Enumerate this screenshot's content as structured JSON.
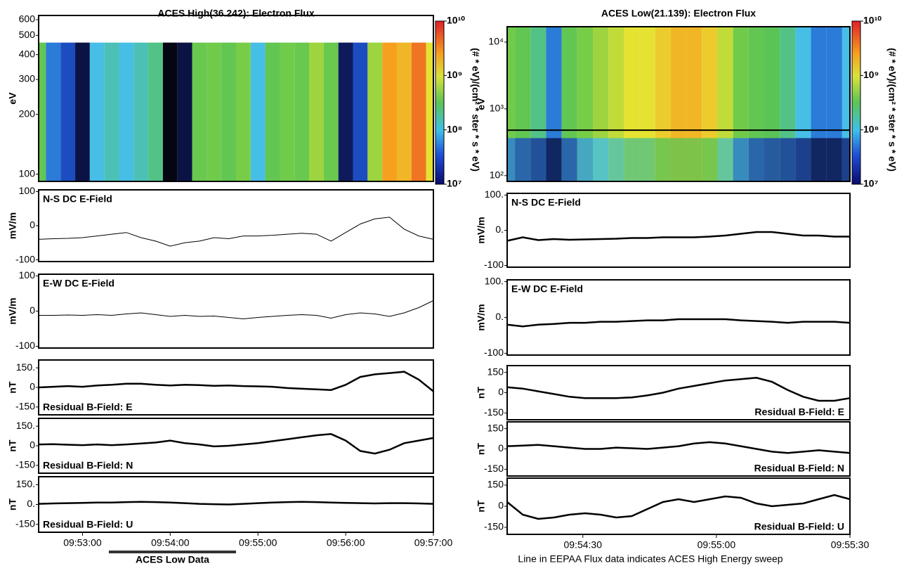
{
  "chart_data": [
    {
      "type": "heatmap",
      "title": "ACES High(36.242): Electron Flux",
      "ylabel": "eV",
      "log_y": true,
      "ylim": [
        92,
        630
      ],
      "yticks": [
        100,
        200,
        300,
        400,
        500,
        600
      ],
      "max_energy": 460,
      "xlim": [
        33150,
        33420
      ],
      "x": [
        33150,
        33160,
        33170,
        33180,
        33190,
        33200,
        33210,
        33220,
        33230,
        33240,
        33250,
        33260,
        33270,
        33280,
        33290,
        33300,
        33310,
        33320,
        33330,
        33340,
        33350,
        33360,
        33370,
        33380,
        33390,
        33400,
        33410,
        33420
      ],
      "values": [
        8.6,
        8.0,
        7.8,
        7.2,
        8.2,
        8.3,
        8.2,
        8.3,
        8.4,
        7.0,
        7.2,
        8.7,
        8.8,
        8.6,
        8.9,
        8.2,
        8.6,
        8.8,
        8.7,
        9.0,
        8.7,
        7.3,
        7.8,
        9.0,
        9.5,
        9.4,
        9.6,
        9.2
      ],
      "colorbar": {
        "label": "(# * eV)/(cm² * ster * s * eV)",
        "lim": [
          10000000,
          10000000000
        ],
        "ticks": [
          {
            "value": 10000000,
            "label": "10⁷"
          },
          {
            "value": 100000000,
            "label": "10⁸"
          },
          {
            "value": 1000000000,
            "label": "10⁹"
          },
          {
            "value": 10000000000,
            "label": "10¹⁰"
          }
        ]
      }
    },
    {
      "type": "line",
      "label": "N-S DC E-Field",
      "label_corner": "top left",
      "ylabel": "mV/m",
      "color": "#000000",
      "xlim": [
        33150,
        33420
      ],
      "ylim": [
        -105,
        105
      ],
      "yticks": [
        -100,
        0,
        100
      ],
      "x": [
        33150,
        33160,
        33170,
        33180,
        33190,
        33200,
        33210,
        33220,
        33230,
        33240,
        33250,
        33260,
        33270,
        33280,
        33290,
        33300,
        33310,
        33320,
        33330,
        33340,
        33350,
        33360,
        33370,
        33380,
        33390,
        33400,
        33410,
        33420
      ],
      "values": [
        -40,
        -38,
        -37,
        -35,
        -30,
        -25,
        -20,
        -35,
        -45,
        -60,
        -50,
        -45,
        -35,
        -38,
        -30,
        -30,
        -28,
        -25,
        -22,
        -25,
        -45,
        -20,
        5,
        20,
        25,
        -10,
        -30,
        -40
      ]
    },
    {
      "type": "line",
      "label": "E-W DC E-Field",
      "label_corner": "top left",
      "ylabel": "mV/m",
      "color": "#000000",
      "xlim": [
        33150,
        33420
      ],
      "ylim": [
        -105,
        105
      ],
      "yticks": [
        -100,
        0,
        100
      ],
      "x": [
        33150,
        33160,
        33170,
        33180,
        33190,
        33200,
        33210,
        33220,
        33230,
        33240,
        33250,
        33260,
        33270,
        33280,
        33290,
        33300,
        33310,
        33320,
        33330,
        33340,
        33350,
        33360,
        33370,
        33380,
        33390,
        33400,
        33410,
        33420
      ],
      "values": [
        -12,
        -12,
        -11,
        -12,
        -10,
        -12,
        -8,
        -5,
        -10,
        -15,
        -12,
        -15,
        -14,
        -18,
        -22,
        -18,
        -15,
        -12,
        -10,
        -12,
        -20,
        -10,
        -5,
        -8,
        -15,
        -5,
        10,
        30
      ]
    },
    {
      "type": "line",
      "label": "Residual B-Field: E",
      "label_corner": "bottom left",
      "ylabel": "nT",
      "color": "#000000",
      "xlim": [
        33150,
        33420
      ],
      "ylim": [
        -210,
        210
      ],
      "yticks": [
        -150,
        0,
        {
          "value": 150,
          "label": "150."
        }
      ],
      "x": [
        33150,
        33160,
        33170,
        33180,
        33190,
        33200,
        33210,
        33220,
        33230,
        33240,
        33250,
        33260,
        33270,
        33280,
        33290,
        33300,
        33310,
        33320,
        33330,
        33340,
        33350,
        33360,
        33370,
        33380,
        33390,
        33400,
        33410,
        33420
      ],
      "values": [
        0,
        5,
        10,
        5,
        15,
        20,
        28,
        28,
        20,
        15,
        20,
        18,
        12,
        15,
        10,
        8,
        5,
        -5,
        -10,
        -15,
        -20,
        20,
        80,
        100,
        110,
        120,
        60,
        -30
      ]
    },
    {
      "type": "line",
      "label": "Residual B-Field: N",
      "label_corner": "bottom left",
      "ylabel": "nT",
      "color": "#000000",
      "xlim": [
        33150,
        33420
      ],
      "ylim": [
        -210,
        210
      ],
      "yticks": [
        -150,
        0,
        {
          "value": 150,
          "label": "150."
        }
      ],
      "x": [
        33150,
        33160,
        33170,
        33180,
        33190,
        33200,
        33210,
        33220,
        33230,
        33240,
        33250,
        33260,
        33270,
        33280,
        33290,
        33300,
        33310,
        33320,
        33330,
        33340,
        33350,
        33360,
        33370,
        33380,
        33390,
        33400,
        33410,
        33420
      ],
      "values": [
        10,
        12,
        8,
        5,
        10,
        5,
        10,
        18,
        25,
        40,
        20,
        10,
        -5,
        0,
        10,
        20,
        35,
        50,
        65,
        80,
        90,
        40,
        -40,
        -60,
        -30,
        20,
        40,
        60
      ]
    },
    {
      "type": "line",
      "label": "Residual B-Field: U",
      "label_corner": "bottom left",
      "ylabel": "nT",
      "color": "#000000",
      "xlim": [
        33150,
        33420
      ],
      "ylim": [
        -210,
        210
      ],
      "yticks": [
        -150,
        {
          "value": 0,
          "label": "0."
        },
        {
          "value": 150,
          "label": "150."
        }
      ],
      "xticks": [
        {
          "value": 33180,
          "label": "09:53:00"
        },
        {
          "value": 33240,
          "label": "09:54:00"
        },
        {
          "value": 33300,
          "label": "09:55:00"
        },
        {
          "value": 33360,
          "label": "09:56:00"
        },
        {
          "value": 33420,
          "label": "09:57:00"
        }
      ],
      "annotation": {
        "text": "ACES Low Data",
        "x": [
          33198,
          33285
        ]
      },
      "x": [
        33150,
        33160,
        33170,
        33180,
        33190,
        33200,
        33210,
        33220,
        33230,
        33240,
        33250,
        33260,
        33270,
        33280,
        33290,
        33300,
        33310,
        33320,
        33330,
        33340,
        33350,
        33360,
        33370,
        33380,
        33390,
        33400,
        33410,
        33420
      ],
      "values": [
        5,
        8,
        10,
        12,
        15,
        15,
        18,
        20,
        18,
        15,
        10,
        5,
        2,
        0,
        5,
        10,
        15,
        18,
        20,
        18,
        15,
        12,
        10,
        8,
        10,
        10,
        8,
        5
      ]
    },
    {
      "type": "heatmap",
      "title": "ACES Low(21.139): Electron Flux",
      "ylabel": "eV",
      "log_y": true,
      "ylim": [
        82,
        17000
      ],
      "yticks": [
        {
          "value": 100,
          "label": "10²"
        },
        {
          "value": 1000,
          "label": "10³"
        },
        {
          "value": 10000,
          "label": "10⁴"
        }
      ],
      "sweep_energy": 480,
      "xlim": [
        33253,
        33330
      ],
      "x": [
        33253,
        33256.5,
        33260,
        33263.5,
        33267,
        33270.5,
        33274,
        33277.5,
        33281,
        33284.5,
        33288,
        33291.5,
        33295,
        33298.5,
        33302,
        33305.5,
        33309,
        33312.5,
        33316,
        33319.5,
        33323,
        33326.5,
        33330
      ],
      "values": [
        8.8,
        8.6,
        8.4,
        8.0,
        8.6,
        8.9,
        9.0,
        9.1,
        9.2,
        9.2,
        9.3,
        9.4,
        9.4,
        9.3,
        9.1,
        8.8,
        8.6,
        8.5,
        8.4,
        8.2,
        8.0,
        8.0,
        8.2
      ],
      "colorbar": {
        "label": "(# * eV)/(cm² * ster * s * eV)",
        "lim": [
          10000000,
          10000000000
        ],
        "ticks": [
          {
            "value": 10000000,
            "label": "10⁷"
          },
          {
            "value": 100000000,
            "label": "10⁸"
          },
          {
            "value": 1000000000,
            "label": "10⁹"
          },
          {
            "value": 10000000000,
            "label": "10¹⁰"
          }
        ]
      }
    },
    {
      "type": "line",
      "label": "N-S DC E-Field",
      "label_corner": "top left",
      "ylabel": "mV/m",
      "color": "#000000",
      "xlim": [
        33253,
        33330
      ],
      "ylim": [
        -105,
        105
      ],
      "yticks": [
        -100,
        {
          "value": 0,
          "label": "0."
        },
        {
          "value": 100,
          "label": "100."
        }
      ],
      "x": [
        33253,
        33256.5,
        33260,
        33263.5,
        33267,
        33270.5,
        33274,
        33277.5,
        33281,
        33284.5,
        33288,
        33291.5,
        33295,
        33298.5,
        33302,
        33305.5,
        33309,
        33312.5,
        33316,
        33319.5,
        33323,
        33326.5,
        33330
      ],
      "values": [
        -30,
        -20,
        -28,
        -25,
        -27,
        -26,
        -25,
        -24,
        -22,
        -22,
        -20,
        -20,
        -20,
        -18,
        -15,
        -10,
        -5,
        -5,
        -10,
        -15,
        -15,
        -18,
        -18
      ]
    },
    {
      "type": "line",
      "label": "E-W DC E-Field",
      "label_corner": "top left",
      "ylabel": "mV/m",
      "color": "#000000",
      "xlim": [
        33253,
        33330
      ],
      "ylim": [
        -105,
        105
      ],
      "yticks": [
        -100,
        {
          "value": 0,
          "label": "0."
        },
        {
          "value": 100,
          "label": "100."
        }
      ],
      "x": [
        33253,
        33256.5,
        33260,
        33263.5,
        33267,
        33270.5,
        33274,
        33277.5,
        33281,
        33284.5,
        33288,
        33291.5,
        33295,
        33298.5,
        33302,
        33305.5,
        33309,
        33312.5,
        33316,
        33319.5,
        33323,
        33326.5,
        33330
      ],
      "values": [
        -20,
        -25,
        -20,
        -18,
        -15,
        -15,
        -12,
        -12,
        -10,
        -8,
        -8,
        -5,
        -5,
        -5,
        -5,
        -8,
        -10,
        -12,
        -15,
        -12,
        -12,
        -12,
        -15
      ]
    },
    {
      "type": "line",
      "label": "Residual B-Field: E",
      "label_corner": "bottom right",
      "ylabel": "nT",
      "color": "#000000",
      "xlim": [
        33253,
        33330
      ],
      "ylim": [
        -200,
        200
      ],
      "yticks": [
        -150,
        0,
        150
      ],
      "x": [
        33253,
        33256.5,
        33260,
        33263.5,
        33267,
        33270.5,
        33274,
        33277.5,
        33281,
        33284.5,
        33288,
        33291.5,
        33295,
        33298.5,
        33302,
        33305.5,
        33309,
        33312.5,
        33316,
        33319.5,
        33323,
        33326.5,
        33330
      ],
      "values": [
        40,
        30,
        10,
        -10,
        -30,
        -40,
        -40,
        -40,
        -35,
        -20,
        0,
        30,
        50,
        70,
        90,
        100,
        110,
        80,
        20,
        -30,
        -60,
        -60,
        -40
      ]
    },
    {
      "type": "line",
      "label": "Residual B-Field: N",
      "label_corner": "bottom right",
      "ylabel": "nT",
      "color": "#000000",
      "xlim": [
        33253,
        33330
      ],
      "ylim": [
        -200,
        200
      ],
      "yticks": [
        -150,
        0,
        150
      ],
      "x": [
        33253,
        33256.5,
        33260,
        33263.5,
        33267,
        33270.5,
        33274,
        33277.5,
        33281,
        33284.5,
        33288,
        33291.5,
        33295,
        33298.5,
        33302,
        33305.5,
        33309,
        33312.5,
        33316,
        33319.5,
        33323,
        33326.5,
        33330
      ],
      "values": [
        20,
        25,
        30,
        20,
        10,
        0,
        0,
        10,
        5,
        0,
        10,
        20,
        40,
        50,
        40,
        20,
        0,
        -20,
        -30,
        -20,
        -10,
        -20,
        -30
      ]
    },
    {
      "type": "line",
      "label": "Residual B-Field: U",
      "label_corner": "bottom right",
      "ylabel": "nT",
      "color": "#000000",
      "xlim": [
        33253,
        33330
      ],
      "ylim": [
        -200,
        200
      ],
      "yticks": [
        -150,
        0,
        150
      ],
      "xticks": [
        {
          "value": 33270,
          "label": "09:54:30"
        },
        {
          "value": 33300,
          "label": "09:55:00"
        },
        {
          "value": 33330,
          "label": "09:55:30"
        }
      ],
      "note": "Line in EEPAA Flux data indicates ACES High Energy sweep",
      "x": [
        33253,
        33256.5,
        33260,
        33263.5,
        33267,
        33270.5,
        33274,
        33277.5,
        33281,
        33284.5,
        33288,
        33291.5,
        33295,
        33298.5,
        33302,
        33305.5,
        33309,
        33312.5,
        33316,
        33319.5,
        33323,
        33326.5,
        33330
      ],
      "values": [
        30,
        -60,
        -90,
        -80,
        -60,
        -50,
        -60,
        -80,
        -70,
        -20,
        30,
        50,
        30,
        50,
        70,
        60,
        20,
        0,
        10,
        20,
        50,
        80,
        50
      ]
    }
  ]
}
